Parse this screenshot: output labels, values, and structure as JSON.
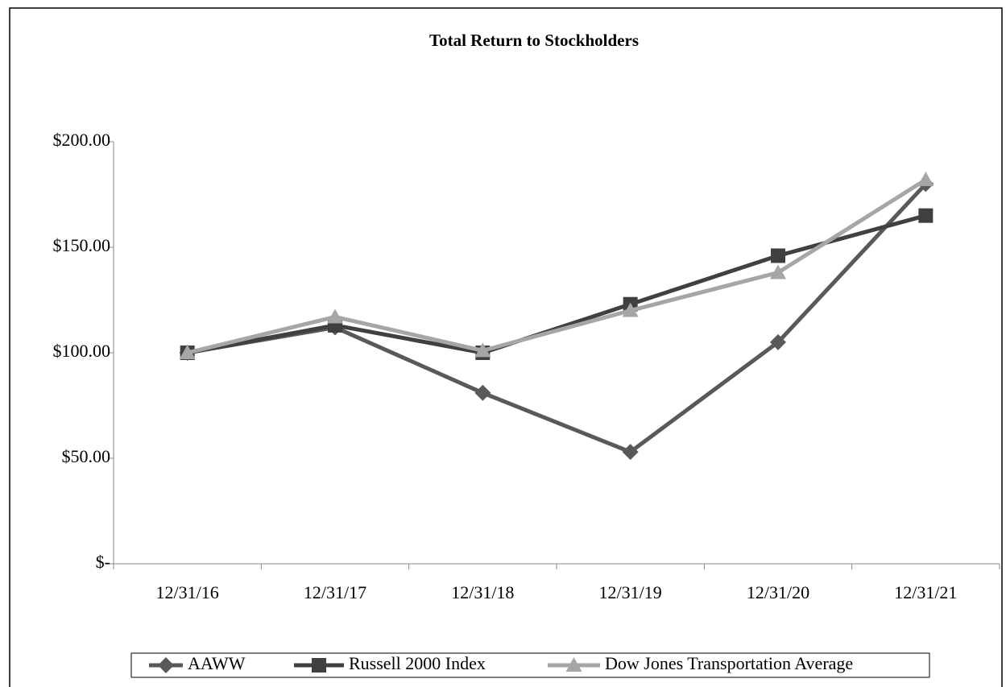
{
  "chart_data": {
    "type": "line",
    "title": "Total Return to Stockholders",
    "categories": [
      "12/31/16",
      "12/31/17",
      "12/31/18",
      "12/31/19",
      "12/31/20",
      "12/31/21"
    ],
    "series": [
      {
        "name": "AAWW",
        "color": "#595959",
        "marker": "diamond",
        "values": [
          100,
          112,
          81,
          53,
          105,
          180
        ]
      },
      {
        "name": "Russell 2000 Index",
        "color": "#404040",
        "marker": "square",
        "values": [
          100,
          113,
          100,
          123,
          146,
          165
        ]
      },
      {
        "name": "Dow Jones Transportation Average",
        "color": "#a6a6a6",
        "marker": "triangle",
        "values": [
          100,
          117,
          101,
          120,
          138,
          182
        ]
      }
    ],
    "ylim": [
      0,
      200
    ],
    "yticks": [
      {
        "value": 0,
        "label": "$-"
      },
      {
        "value": 50,
        "label": "$50.00"
      },
      {
        "value": 100,
        "label": "$100.00"
      },
      {
        "value": 150,
        "label": "$150.00"
      },
      {
        "value": 200,
        "label": "$200.00"
      }
    ],
    "legend": "bottom"
  }
}
